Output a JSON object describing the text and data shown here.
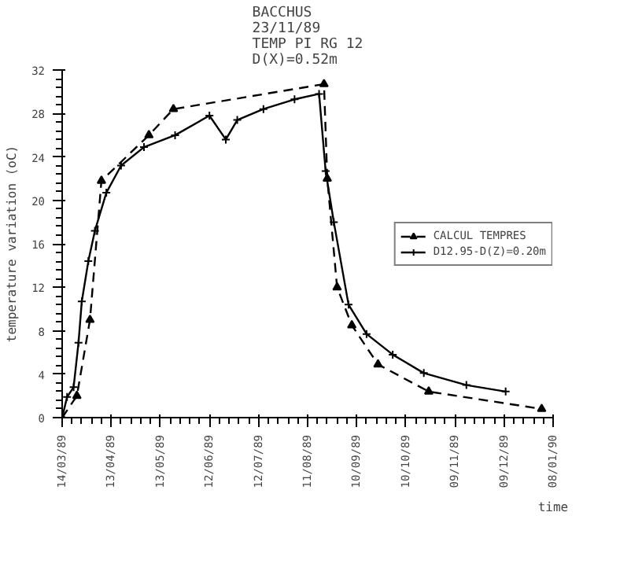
{
  "chart_data": {
    "type": "line",
    "title": "BACCHUS\n23/11/89\nTEMP PI RG 12\nD(X)=0.52m",
    "xlabel": "time",
    "ylabel": "temperature variation (oC)",
    "xlim": [
      "1989-03-14",
      "1990-01-08"
    ],
    "ylim": [
      0,
      32
    ],
    "xticks": [
      {
        "value": "1989-03-14",
        "label": "14/03/89"
      },
      {
        "value": "1989-04-13",
        "label": "13/04/89"
      },
      {
        "value": "1989-05-13",
        "label": "13/05/89"
      },
      {
        "value": "1989-06-12",
        "label": "12/06/89"
      },
      {
        "value": "1989-07-12",
        "label": "12/07/89"
      },
      {
        "value": "1989-08-11",
        "label": "11/08/89"
      },
      {
        "value": "1989-09-10",
        "label": "10/09/89"
      },
      {
        "value": "1989-10-10",
        "label": "10/10/89"
      },
      {
        "value": "1989-11-09",
        "label": "09/11/89"
      },
      {
        "value": "1989-12-09",
        "label": "09/12/89"
      },
      {
        "value": "1990-01-08",
        "label": "08/01/90"
      }
    ],
    "yticks": [
      0,
      4,
      8,
      12,
      16,
      20,
      24,
      28,
      32
    ],
    "legend": "right",
    "series": [
      {
        "name": "CALCUL TEMPRES",
        "color": "#000000",
        "marker": "triangle",
        "line_style": "dashed",
        "x": [
          "1989-03-14",
          "1989-03-23",
          "1989-03-31",
          "1989-04-07",
          "1989-05-06",
          "1989-05-21",
          "1989-08-21",
          "1989-08-23",
          "1989-08-29",
          "1989-09-07",
          "1989-09-23",
          "1989-10-24",
          "1990-01-01"
        ],
        "values": [
          0,
          2,
          9,
          21.8,
          26.0,
          28.4,
          30.7,
          22,
          12,
          8.5,
          4.9,
          2.4,
          0.8
        ]
      },
      {
        "name": "D12.95-D(Z)=0.20m",
        "color": "#000000",
        "marker": "cross",
        "line_style": "solid",
        "x": [
          "1989-03-14",
          "1989-03-17",
          "1989-03-21",
          "1989-03-24",
          "1989-03-26",
          "1989-03-30",
          "1989-04-03",
          "1989-04-10",
          "1989-04-19",
          "1989-05-03",
          "1989-05-22",
          "1989-06-12",
          "1989-06-22",
          "1989-06-29",
          "1989-07-15",
          "1989-08-03",
          "1989-08-18",
          "1989-08-22",
          "1989-08-27",
          "1989-09-05",
          "1989-09-16",
          "1989-10-02",
          "1989-10-21",
          "1989-11-16",
          "1989-12-10"
        ],
        "values": [
          0,
          1.9,
          2.8,
          6.9,
          10.7,
          14.4,
          17.2,
          20.7,
          23.2,
          24.9,
          26.0,
          27.8,
          25.6,
          27.4,
          28.4,
          29.3,
          29.8,
          22.7,
          18,
          10.4,
          7.7,
          5.8,
          4.1,
          3.0,
          2.4
        ]
      }
    ]
  }
}
